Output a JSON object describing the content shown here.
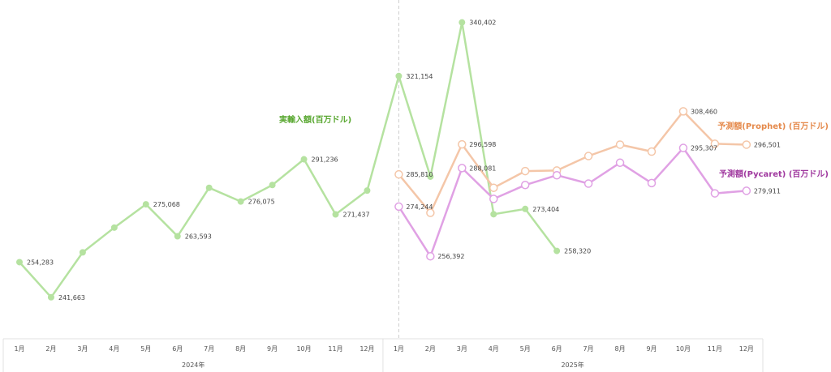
{
  "chart_data": {
    "type": "line",
    "categories": [
      "1月",
      "2月",
      "3月",
      "4月",
      "5月",
      "6月",
      "7月",
      "8月",
      "9月",
      "10月",
      "11月",
      "12月",
      "1月",
      "2月",
      "3月",
      "4月",
      "5月",
      "6月",
      "7月",
      "8月",
      "9月",
      "10月",
      "11月",
      "12月"
    ],
    "year_groups": [
      {
        "label": "2024年",
        "start": 0,
        "end": 11
      },
      {
        "label": "2025年",
        "start": 12,
        "end": 23
      }
    ],
    "ylim": [
      232000,
      347000
    ],
    "series": [
      {
        "name": "実輸入額(百万ドル)",
        "color": "#b5e2a0",
        "label_color": "#5aa832",
        "marker": "filled",
        "values": [
          254283,
          241663,
          257800,
          266700,
          275068,
          263593,
          281000,
          276075,
          282000,
          291236,
          271437,
          280000,
          321154,
          285000,
          340402,
          271500,
          273404,
          258320,
          null,
          null,
          null,
          null,
          null,
          null
        ],
        "labels": [
          "254,283",
          "241,663",
          "",
          "",
          "275,068",
          "263,593",
          "",
          "276,075",
          "",
          "291,236",
          "271,437",
          "",
          "321,154",
          "",
          "340,402",
          "",
          "273,404",
          "258,320",
          "",
          "",
          "",
          "",
          "",
          ""
        ]
      },
      {
        "name": "予測額(Prophet) (百万ドル)",
        "color": "#f4c6a8",
        "label_color": "#e58a4c",
        "marker": "hollow",
        "values": [
          null,
          null,
          null,
          null,
          null,
          null,
          null,
          null,
          null,
          null,
          null,
          null,
          285810,
          272000,
          296598,
          281000,
          287000,
          287200,
          292400,
          296500,
          294000,
          308460,
          296800,
          296501
        ],
        "labels": [
          "",
          "",
          "",
          "",
          "",
          "",
          "",
          "",
          "",
          "",
          "",
          "",
          "285,810",
          "",
          "296,598",
          "",
          "",
          "",
          "",
          "",
          "",
          "308,460",
          "",
          "296,501"
        ]
      },
      {
        "name": "予測額(Pycaret) (百万ドル)",
        "color": "#e0a1e4",
        "label_color": "#a0399f",
        "marker": "hollow",
        "values": [
          null,
          null,
          null,
          null,
          null,
          null,
          null,
          null,
          null,
          null,
          null,
          null,
          274244,
          256392,
          288081,
          277000,
          282000,
          285500,
          282500,
          290000,
          282700,
          295307,
          279000,
          279911
        ],
        "labels": [
          "",
          "",
          "",
          "",
          "",
          "",
          "",
          "",
          "",
          "",
          "",
          "",
          "274,244",
          "256,392",
          "288,081",
          "",
          "",
          "",
          "",
          "",
          "",
          "295,307",
          "",
          "279,911"
        ]
      }
    ],
    "divider_index": 12
  }
}
